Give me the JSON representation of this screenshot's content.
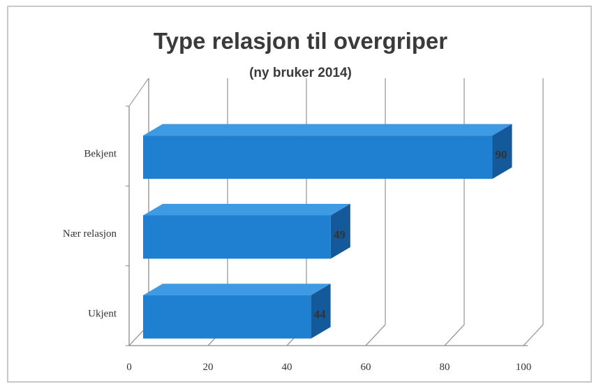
{
  "chart_data": {
    "type": "bar",
    "orientation": "horizontal",
    "three_d": true,
    "title": "Type relasjon til overgriper",
    "subtitle": "(ny bruker 2014)",
    "categories": [
      "Bekjent",
      "Nær relasjon",
      "Ukjent"
    ],
    "values": [
      90,
      49,
      44
    ],
    "value_labels": [
      "90",
      "49",
      "44"
    ],
    "xlim": [
      0,
      100
    ],
    "x_ticks": [
      "0",
      "20",
      "40",
      "60",
      "80",
      "100"
    ],
    "grid": true,
    "legend": "none",
    "colors": {
      "bar_front": "#1f7fd0",
      "bar_top": "#3d9ae3",
      "bar_side": "#14599a",
      "grid": "#9a9a9a"
    }
  }
}
